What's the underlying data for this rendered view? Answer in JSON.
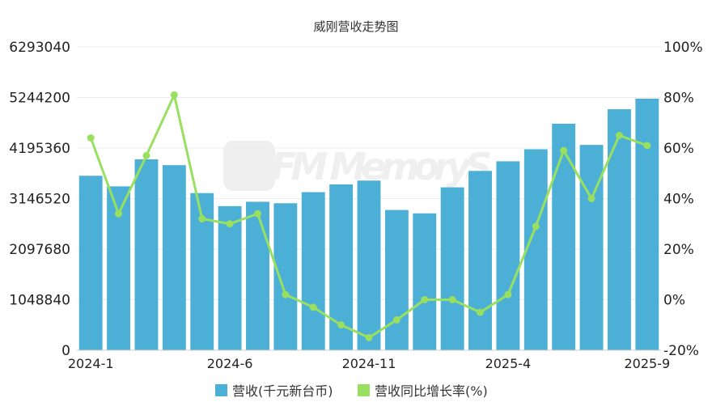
{
  "chart_data": {
    "type": "bar",
    "title": "威刚营收走势图",
    "watermark": "CFM MemoryS",
    "categories": [
      "2024-1",
      "2024-2",
      "2024-3",
      "2024-4",
      "2024-5",
      "2024-6",
      "2024-7",
      "2024-8",
      "2024-9",
      "2024-10",
      "2024-11",
      "2024-12",
      "2025-1",
      "2025-2",
      "2025-3",
      "2025-4",
      "2025-5",
      "2025-6",
      "2025-7",
      "2025-8",
      "2025-9"
    ],
    "x_tick_labels": [
      "2024-1",
      "2024-6",
      "2024-11",
      "2025-4",
      "2025-9"
    ],
    "series": [
      {
        "name": "营收(千元新台币)",
        "type": "bar",
        "axis": "left",
        "color": "#4bafd6",
        "values": [
          3620000,
          3400000,
          3960000,
          3840000,
          3260000,
          2990000,
          3080000,
          3050000,
          3280000,
          3440000,
          3520000,
          2910000,
          2840000,
          3380000,
          3720000,
          3920000,
          4170000,
          4700000,
          4260000,
          5000000,
          5220000
        ]
      },
      {
        "name": "营收同比增长率(%)",
        "type": "line",
        "axis": "right",
        "color": "#99e060",
        "values": [
          64,
          34,
          57,
          81,
          32,
          30,
          34,
          2,
          -3,
          -10,
          -15,
          -8,
          0,
          0,
          -5,
          2,
          29,
          59,
          40,
          65,
          61
        ]
      }
    ],
    "y_left": {
      "min": 0,
      "max": 6293040,
      "ticks": [
        0,
        1048840,
        2097680,
        3146520,
        4195360,
        5244200,
        6293040
      ]
    },
    "y_right": {
      "min": -20,
      "max": 100,
      "ticks": [
        "-20%",
        "0%",
        "20%",
        "40%",
        "60%",
        "80%",
        "100%"
      ]
    },
    "grid": true,
    "legend_position": "bottom"
  }
}
